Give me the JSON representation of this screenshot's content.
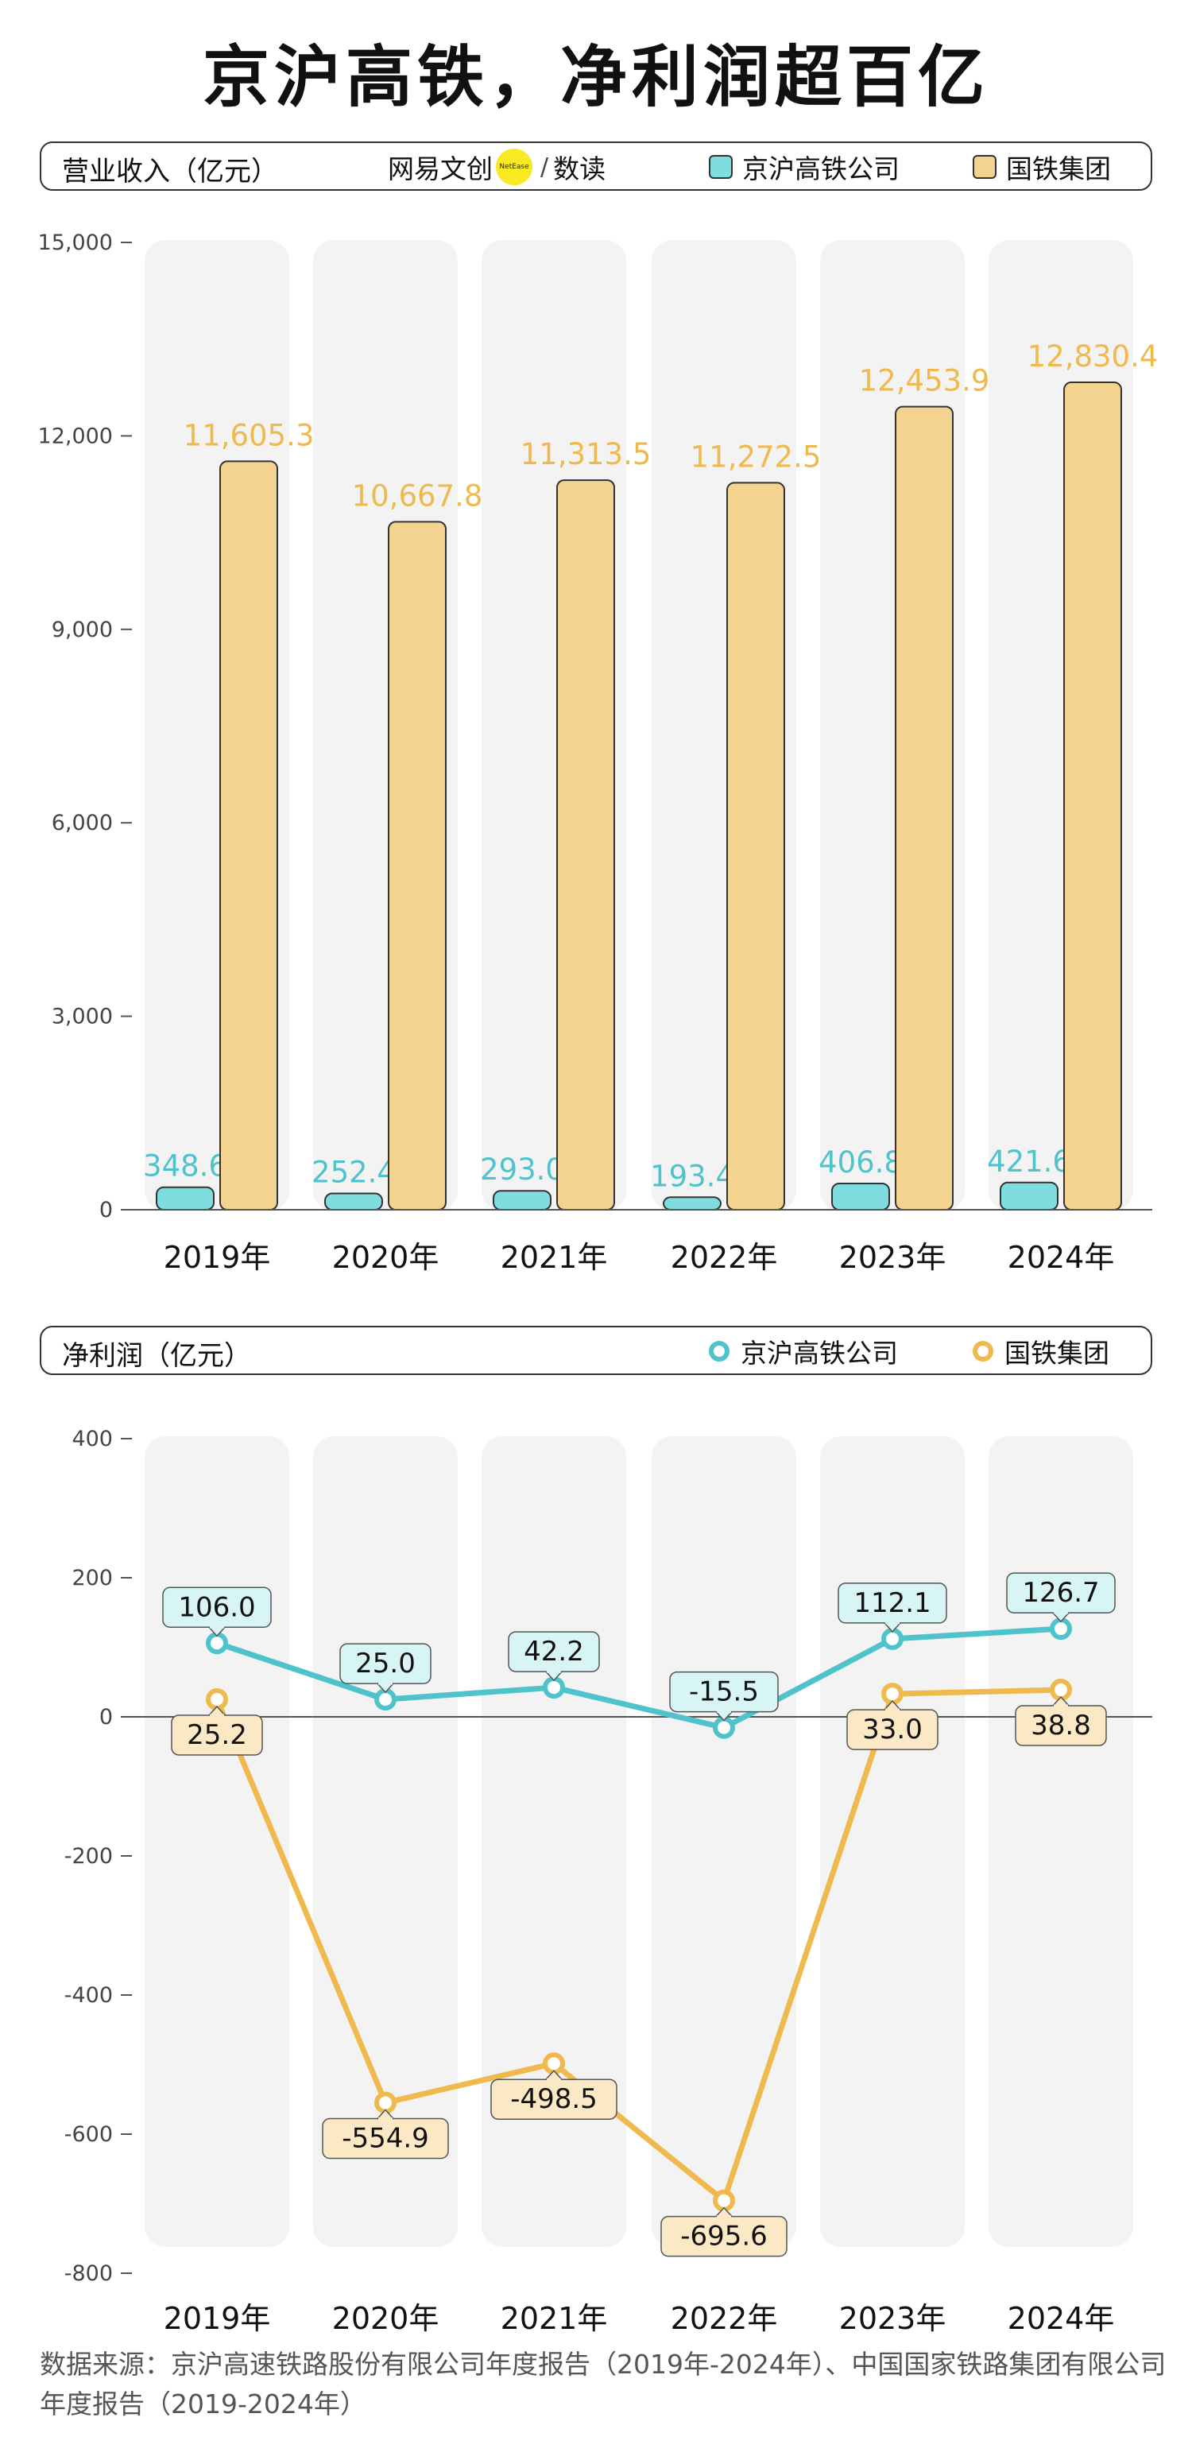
{
  "title": "京沪高铁，净利润超百亿",
  "brand": {
    "main": "网易文创",
    "dot": "NetEase",
    "sep": "/",
    "sub": "数读"
  },
  "colors": {
    "jinghu": "#4fc3cc",
    "jinghu_fill": "#7fdde0",
    "jinghu_label_bg": "#d8f5f6",
    "guotie": "#f0b94e",
    "guotie_fill": "#f3d38f",
    "guotie_label_bg": "#fbe9c6",
    "column_bg": "#f3f3f3",
    "axis": "#555555"
  },
  "revenue_header": {
    "title": "营业收入（亿元）",
    "legend": [
      {
        "label": "京沪高铁公司",
        "icon": "teal-square-icon"
      },
      {
        "label": "国铁集团",
        "icon": "yellow-square-icon"
      }
    ]
  },
  "profit_header": {
    "title": "净利润（亿元）",
    "legend": [
      {
        "label": "京沪高铁公司",
        "icon": "teal-circle-icon"
      },
      {
        "label": "国铁集团",
        "icon": "yellow-circle-icon"
      }
    ]
  },
  "chart_data": [
    {
      "type": "bar",
      "title": "营业收入（亿元）",
      "categories": [
        "2019年",
        "2020年",
        "2021年",
        "2022年",
        "2023年",
        "2024年"
      ],
      "series": [
        {
          "name": "京沪高铁公司",
          "values": [
            348.6,
            252.4,
            293.0,
            193.4,
            406.8,
            421.6
          ],
          "labels": [
            "348.6",
            "252.4",
            "293.0",
            "193.4",
            "406.8",
            "421.6"
          ]
        },
        {
          "name": "国铁集团",
          "values": [
            11605.3,
            10667.8,
            11313.5,
            11272.5,
            12453.9,
            12830.4
          ],
          "labels": [
            "11,605.3",
            "10,667.8",
            "11,313.5",
            "11,272.5",
            "12,453.9",
            "12,830.4"
          ]
        }
      ],
      "yticks": [
        0,
        3000,
        6000,
        9000,
        12000,
        15000
      ],
      "ytick_labels": [
        "0",
        "3,000",
        "6,000",
        "9,000",
        "12,000",
        "15,000"
      ],
      "ylim": [
        0,
        15000
      ]
    },
    {
      "type": "line",
      "title": "净利润（亿元）",
      "categories": [
        "2019年",
        "2020年",
        "2021年",
        "2022年",
        "2023年",
        "2024年"
      ],
      "series": [
        {
          "name": "京沪高铁公司",
          "values": [
            106.0,
            25.0,
            42.2,
            -15.5,
            112.1,
            126.7
          ],
          "labels": [
            "106.0",
            "25.0",
            "42.2",
            "-15.5",
            "112.1",
            "126.7"
          ]
        },
        {
          "name": "国铁集团",
          "values": [
            25.2,
            -554.9,
            -498.5,
            -695.6,
            33.0,
            38.8
          ],
          "labels": [
            "25.2",
            "-554.9",
            "-498.5",
            "-695.6",
            "33.0",
            "38.8"
          ]
        }
      ],
      "yticks": [
        -800,
        -600,
        -400,
        -200,
        0,
        200,
        400
      ],
      "ytick_labels": [
        "-800",
        "-600",
        "-400",
        "-200",
        "0",
        "200",
        "400"
      ],
      "ylim": [
        -800,
        400
      ]
    }
  ],
  "source": "数据来源：京沪高速铁路股份有限公司年度报告（2019年-2024年）、中国国家铁路集团有限公司年度报告（2019-2024年）"
}
